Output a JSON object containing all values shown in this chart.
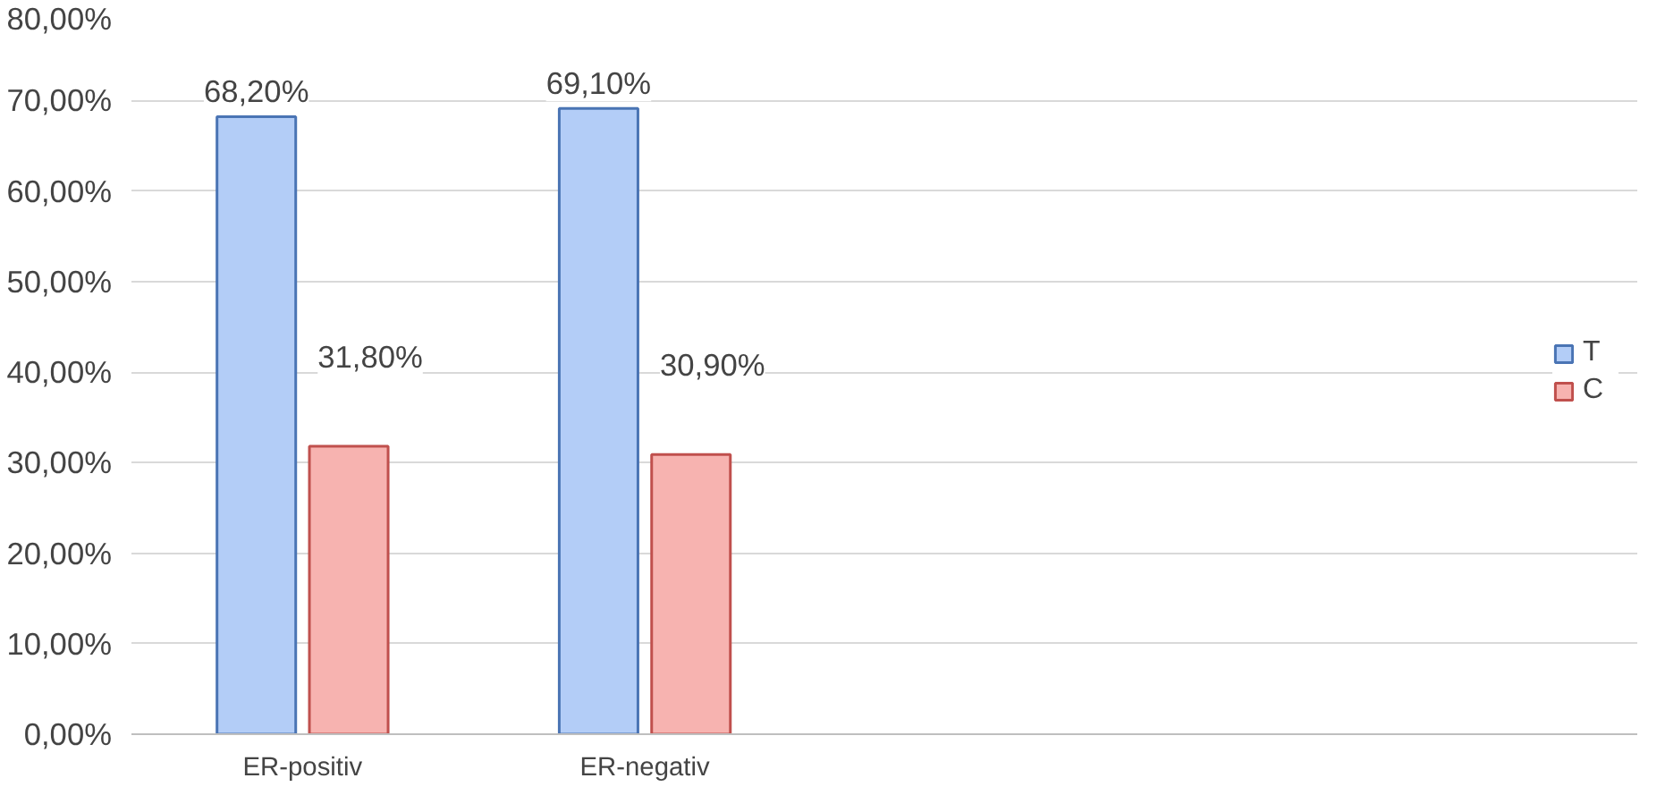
{
  "chart_data": {
    "type": "bar",
    "categories": [
      "ER-positiv",
      "ER-negativ",
      null,
      null
    ],
    "series": [
      {
        "name": "T",
        "color": "#b3cdf7",
        "values": [
          68.2,
          69.1,
          null,
          null
        ],
        "value_labels": [
          "68,20%",
          "69,10%",
          null,
          null
        ]
      },
      {
        "name": "C",
        "color": "#f7b3b0",
        "values": [
          31.8,
          30.9,
          null,
          null
        ],
        "value_labels": [
          "31,80%",
          "30,90%",
          null,
          null
        ]
      }
    ],
    "ylim": [
      0,
      80
    ],
    "yticks": [
      {
        "value": 0,
        "label": "0,00%"
      },
      {
        "value": 10,
        "label": "10,00%"
      },
      {
        "value": 20,
        "label": "20,00%"
      },
      {
        "value": 30,
        "label": "30,00%"
      },
      {
        "value": 40,
        "label": "40,00%"
      },
      {
        "value": 50,
        "label": "50,00%"
      },
      {
        "value": 60,
        "label": "60,00%"
      },
      {
        "value": 70,
        "label": "70,00%"
      },
      {
        "value": 80,
        "label": "80,00%"
      }
    ],
    "grid": "y",
    "legend": "right"
  }
}
